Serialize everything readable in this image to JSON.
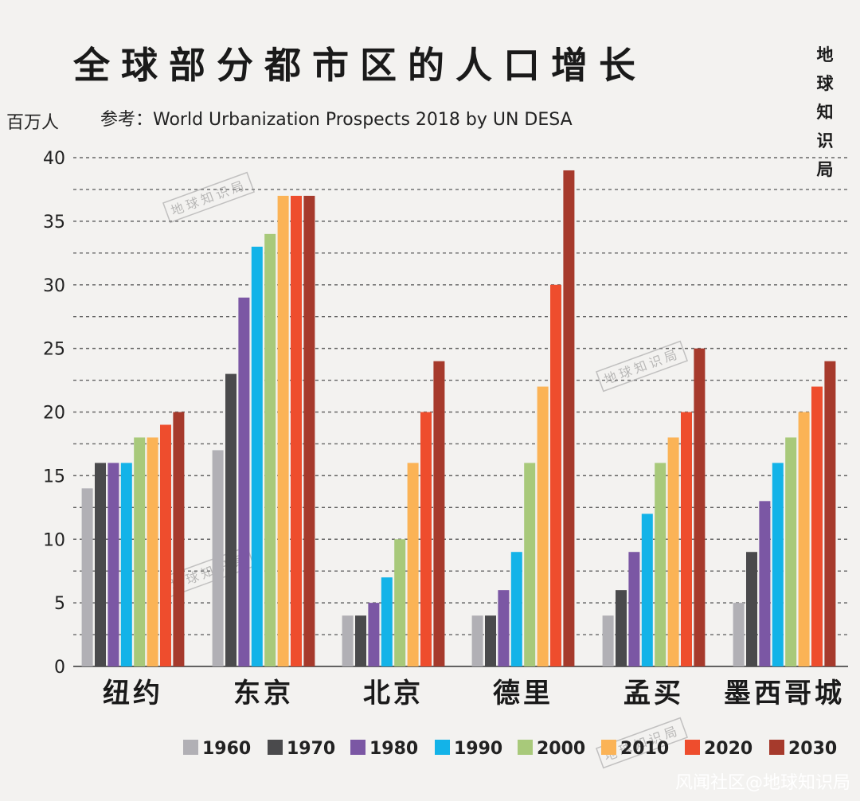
{
  "chart_data": {
    "type": "bar",
    "title": "全球部分都市区的人口增长",
    "source": "参考：World Urbanization Prospects 2018 by UN DESA",
    "ylabel": "百万人",
    "ylim": [
      0,
      40
    ],
    "yticks": [
      0,
      5,
      10,
      15,
      20,
      25,
      30,
      35,
      40
    ],
    "grid": true,
    "legend_position": "bottom",
    "categories": [
      "纽约",
      "东京",
      "北京",
      "德里",
      "孟买",
      "墨西哥城"
    ],
    "series": [
      {
        "name": "1960",
        "color": "#b1b0b5",
        "values": [
          14,
          17,
          4,
          4,
          4,
          5
        ]
      },
      {
        "name": "1970",
        "color": "#4a4a4c",
        "values": [
          16,
          23,
          4,
          4,
          6,
          9
        ]
      },
      {
        "name": "1980",
        "color": "#7b57a4",
        "values": [
          16,
          29,
          5,
          6,
          9,
          13
        ]
      },
      {
        "name": "1990",
        "color": "#13b3e8",
        "values": [
          16,
          33,
          7,
          9,
          12,
          16
        ]
      },
      {
        "name": "2000",
        "color": "#a8c97a",
        "values": [
          18,
          34,
          10,
          16,
          16,
          18
        ]
      },
      {
        "name": "2010",
        "color": "#fbb356",
        "values": [
          18,
          37,
          16,
          22,
          18,
          20
        ]
      },
      {
        "name": "2020",
        "color": "#ee4d2d",
        "values": [
          19,
          37,
          20,
          30,
          20,
          22
        ]
      },
      {
        "name": "2030",
        "color": "#a63a2c",
        "values": [
          20,
          37,
          24,
          39,
          25,
          24
        ]
      }
    ]
  },
  "brand": "地球知识局",
  "watermark_text": "地球知识局",
  "credit": "风闻社区@地球知识局"
}
